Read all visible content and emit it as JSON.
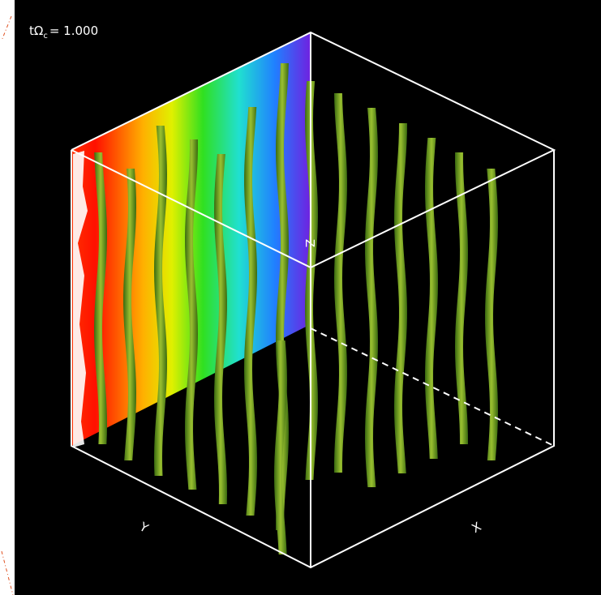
{
  "time_label": {
    "prefix": "tΩ",
    "subscript": "c",
    "suffix": "= 1.000"
  },
  "axes": {
    "x": "X",
    "y": "Y",
    "z": "Z"
  }
}
